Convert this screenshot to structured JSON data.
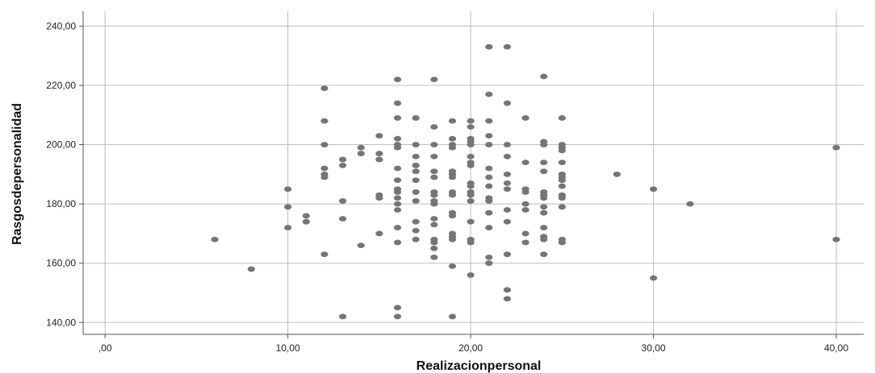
{
  "chart_data": {
    "type": "scatter",
    "xlabel": "Realizacionpersonal",
    "ylabel": "Rasgosdepersonalidad",
    "xlim": [
      -1.2,
      41.5
    ],
    "ylim": [
      136,
      245
    ],
    "grid": true,
    "x_ticks": [
      0,
      10,
      20,
      30,
      40
    ],
    "x_tick_labels": [
      ",00",
      "10,00",
      "20,00",
      "30,00",
      "40,00"
    ],
    "y_ticks": [
      140,
      160,
      180,
      200,
      220,
      240
    ],
    "y_tick_labels": [
      "140,00",
      "160,00",
      "180,00",
      "200,00",
      "220,00",
      "240,00"
    ],
    "marker_color": "#757575",
    "grid_color": "#bdbdbd",
    "points": [
      [
        6,
        168
      ],
      [
        8,
        158
      ],
      [
        10,
        185
      ],
      [
        10,
        179
      ],
      [
        10,
        172
      ],
      [
        11,
        176
      ],
      [
        11,
        174
      ],
      [
        12,
        219
      ],
      [
        12,
        208
      ],
      [
        12,
        200
      ],
      [
        12,
        192
      ],
      [
        12,
        190
      ],
      [
        12,
        189
      ],
      [
        12,
        163
      ],
      [
        13,
        195
      ],
      [
        13,
        193
      ],
      [
        13,
        181
      ],
      [
        13,
        175
      ],
      [
        13,
        142
      ],
      [
        14,
        199
      ],
      [
        14,
        197
      ],
      [
        14,
        166
      ],
      [
        15,
        203
      ],
      [
        15,
        197
      ],
      [
        15,
        195
      ],
      [
        15,
        183
      ],
      [
        15,
        182
      ],
      [
        15,
        170
      ],
      [
        16,
        222
      ],
      [
        16,
        214
      ],
      [
        16,
        209
      ],
      [
        16,
        202
      ],
      [
        16,
        200
      ],
      [
        16,
        199
      ],
      [
        16,
        192
      ],
      [
        16,
        188
      ],
      [
        16,
        185
      ],
      [
        16,
        184
      ],
      [
        16,
        182
      ],
      [
        16,
        180
      ],
      [
        16,
        178
      ],
      [
        16,
        172
      ],
      [
        16,
        167
      ],
      [
        16,
        145
      ],
      [
        16,
        142
      ],
      [
        17,
        209
      ],
      [
        17,
        200
      ],
      [
        17,
        196
      ],
      [
        17,
        193
      ],
      [
        17,
        191
      ],
      [
        17,
        188
      ],
      [
        17,
        184
      ],
      [
        17,
        181
      ],
      [
        17,
        174
      ],
      [
        17,
        171
      ],
      [
        17,
        168
      ],
      [
        18,
        222
      ],
      [
        18,
        206
      ],
      [
        18,
        200
      ],
      [
        18,
        196
      ],
      [
        18,
        191
      ],
      [
        18,
        189
      ],
      [
        18,
        184
      ],
      [
        18,
        183
      ],
      [
        18,
        181
      ],
      [
        18,
        180
      ],
      [
        18,
        175
      ],
      [
        18,
        173
      ],
      [
        18,
        168
      ],
      [
        18,
        167
      ],
      [
        18,
        165
      ],
      [
        18,
        162
      ],
      [
        19,
        208
      ],
      [
        19,
        202
      ],
      [
        19,
        200
      ],
      [
        19,
        199
      ],
      [
        19,
        191
      ],
      [
        19,
        190
      ],
      [
        19,
        189
      ],
      [
        19,
        184
      ],
      [
        19,
        183
      ],
      [
        19,
        177
      ],
      [
        19,
        176
      ],
      [
        19,
        170
      ],
      [
        19,
        169
      ],
      [
        19,
        168
      ],
      [
        19,
        159
      ],
      [
        19,
        142
      ],
      [
        20,
        208
      ],
      [
        20,
        206
      ],
      [
        20,
        202
      ],
      [
        20,
        201
      ],
      [
        20,
        200
      ],
      [
        20,
        196
      ],
      [
        20,
        194
      ],
      [
        20,
        193
      ],
      [
        20,
        187
      ],
      [
        20,
        186
      ],
      [
        20,
        184
      ],
      [
        20,
        183
      ],
      [
        20,
        181
      ],
      [
        20,
        174
      ],
      [
        20,
        168
      ],
      [
        20,
        167
      ],
      [
        20,
        156
      ],
      [
        21,
        233
      ],
      [
        21,
        217
      ],
      [
        21,
        208
      ],
      [
        21,
        203
      ],
      [
        21,
        200
      ],
      [
        21,
        192
      ],
      [
        21,
        189
      ],
      [
        21,
        186
      ],
      [
        21,
        182
      ],
      [
        21,
        181
      ],
      [
        21,
        177
      ],
      [
        21,
        172
      ],
      [
        21,
        162
      ],
      [
        21,
        160
      ],
      [
        22,
        233
      ],
      [
        22,
        214
      ],
      [
        22,
        200
      ],
      [
        22,
        196
      ],
      [
        22,
        190
      ],
      [
        22,
        187
      ],
      [
        22,
        185
      ],
      [
        22,
        178
      ],
      [
        22,
        174
      ],
      [
        22,
        163
      ],
      [
        22,
        151
      ],
      [
        22,
        148
      ],
      [
        23,
        209
      ],
      [
        23,
        194
      ],
      [
        23,
        185
      ],
      [
        23,
        184
      ],
      [
        23,
        180
      ],
      [
        23,
        178
      ],
      [
        23,
        170
      ],
      [
        23,
        167
      ],
      [
        24,
        223
      ],
      [
        24,
        201
      ],
      [
        24,
        200
      ],
      [
        24,
        194
      ],
      [
        24,
        191
      ],
      [
        24,
        184
      ],
      [
        24,
        183
      ],
      [
        24,
        182
      ],
      [
        24,
        179
      ],
      [
        24,
        177
      ],
      [
        24,
        172
      ],
      [
        24,
        169
      ],
      [
        24,
        168
      ],
      [
        24,
        163
      ],
      [
        25,
        209
      ],
      [
        25,
        200
      ],
      [
        25,
        199
      ],
      [
        25,
        198
      ],
      [
        25,
        194
      ],
      [
        25,
        190
      ],
      [
        25,
        189
      ],
      [
        25,
        188
      ],
      [
        25,
        186
      ],
      [
        25,
        183
      ],
      [
        25,
        182
      ],
      [
        25,
        179
      ],
      [
        25,
        168
      ],
      [
        25,
        167
      ],
      [
        28,
        190
      ],
      [
        30,
        185
      ],
      [
        30,
        155
      ],
      [
        32,
        180
      ],
      [
        40,
        199
      ],
      [
        40,
        168
      ]
    ]
  }
}
